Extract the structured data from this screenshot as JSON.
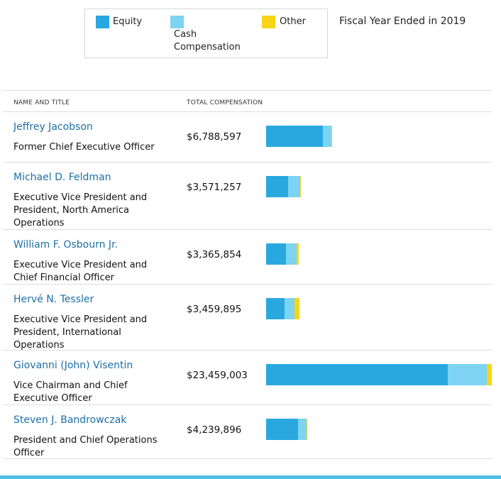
{
  "legend": {
    "items": [
      {
        "label": "Equity",
        "color": "#29a8e0"
      },
      {
        "label": "Cash Compensation",
        "color": "#7dd3f2"
      },
      {
        "label": "Other",
        "color": "#f7d417"
      }
    ]
  },
  "fiscal_label": "Fiscal Year Ended in 2019",
  "headers": {
    "name": "NAME AND TITLE",
    "total": "TOTAL COMPENSATION"
  },
  "chart_data": {
    "type": "bar",
    "orientation": "horizontal",
    "stacked": true,
    "title": "Fiscal Year Ended in 2019",
    "categories": [
      "Jeffrey Jacobson",
      "Michael D. Feldman",
      "William F. Osbourn Jr.",
      "Hervé N. Tessler",
      "Giovanni (John) Visentin",
      "Steven J. Bandrowczak"
    ],
    "titles": [
      "Former Chief Executive Officer",
      "Executive Vice President and President, North America Operations",
      "Executive Vice President and Chief Financial Officer",
      "Executive Vice President and President, International Operations",
      "Vice Chairman and Chief Executive Officer",
      "President and Chief Operations Officer"
    ],
    "totals": [
      "$6,788,597",
      "$3,571,257",
      "$3,365,854",
      "$3,459,895",
      "$23,459,003",
      "$4,239,896"
    ],
    "series": [
      {
        "name": "Equity",
        "values": [
          5900000,
          2300000,
          2050000,
          1900000,
          18900000,
          3350000
        ]
      },
      {
        "name": "Cash Compensation",
        "values": [
          850000,
          1230000,
          1100000,
          1050000,
          4050000,
          850000
        ]
      },
      {
        "name": "Other",
        "values": [
          38597,
          41257,
          215854,
          509895,
          509003,
          39896
        ]
      }
    ],
    "xlim": [
      0,
      23459003
    ]
  }
}
